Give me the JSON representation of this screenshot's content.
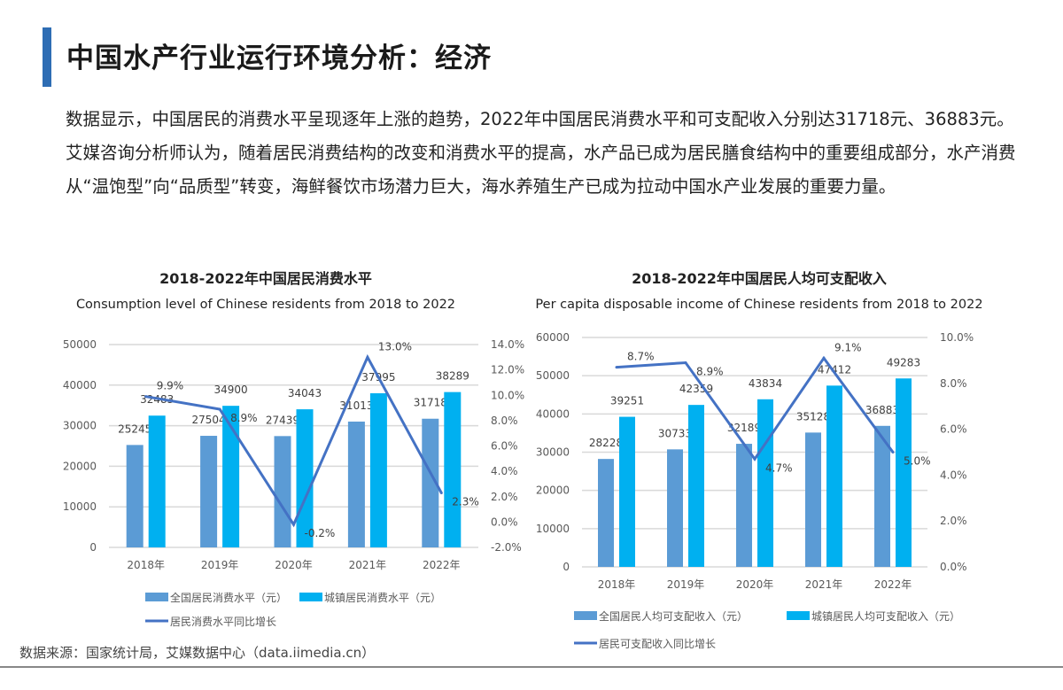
{
  "header": {
    "title": "中国水产行业运行环境分析：经济",
    "accent_color": "#2e6db4"
  },
  "body": {
    "paragraph": "数据显示，中国居民的消费水平呈现逐年上涨的趋势，2022年中国居民消费水平和可支配收入分别达31718元、36883元。艾媒咨询分析师认为，随着居民消费结构的改变和消费水平的提高，水产品已成为居民膳食结构中的重要组成部分，水产消费从“温饱型”向“品质型”转变，海鲜餐饮市场潜力巨大，海水养殖生产已成为拉动中国水产业发展的重要力量。"
  },
  "chart_data": [
    {
      "type": "bar",
      "title": "2018-2022年中国居民消费水平",
      "subtitle": "Consumption level of Chinese residents from 2018 to 2022",
      "categories": [
        "2018年",
        "2019年",
        "2020年",
        "2021年",
        "2022年"
      ],
      "series": [
        {
          "name": "全国居民消费水平（元）",
          "type": "bar",
          "axis": "left",
          "color": "#5b9bd5",
          "values": [
            25245,
            27504,
            27439,
            31013,
            31718
          ]
        },
        {
          "name": "城镇居民消费水平（元）",
          "type": "bar",
          "axis": "left",
          "color": "#00b0f0",
          "values": [
            32483,
            34900,
            34043,
            37995,
            38289
          ]
        },
        {
          "name": "居民消费水平同比增长",
          "type": "line",
          "axis": "right",
          "color": "#4472c4",
          "values": [
            9.9,
            8.9,
            -0.2,
            13.0,
            2.3
          ],
          "labels": [
            "9.9%",
            "8.9%",
            "-0.2%",
            "13.0%",
            "2.3%"
          ]
        }
      ],
      "yticks": [
        "0",
        "10000",
        "20000",
        "30000",
        "40000",
        "50000"
      ],
      "ylim": [
        0,
        50000
      ],
      "y2ticks": [
        "-2.0%",
        "0.0%",
        "2.0%",
        "4.0%",
        "6.0%",
        "8.0%",
        "10.0%",
        "12.0%",
        "14.0%"
      ],
      "y2lim": [
        -2,
        14
      ],
      "grid": true,
      "legend": "bottom"
    },
    {
      "type": "bar",
      "title": "2018-2022年中国居民人均可支配收入",
      "subtitle": "Per capita disposable income of Chinese residents from 2018 to 2022",
      "categories": [
        "2018年",
        "2019年",
        "2020年",
        "2021年",
        "2022年"
      ],
      "series": [
        {
          "name": "全国居民人均可支配收入（元）",
          "type": "bar",
          "axis": "left",
          "color": "#5b9bd5",
          "values": [
            28228,
            30733,
            32189,
            35128,
            36883
          ]
        },
        {
          "name": "城镇居民人均可支配收入（元）",
          "type": "bar",
          "axis": "left",
          "color": "#00b0f0",
          "values": [
            39251,
            42359,
            43834,
            47412,
            49283
          ]
        },
        {
          "name": "居民可支配收入同比增长",
          "type": "line",
          "axis": "right",
          "color": "#4472c4",
          "values": [
            8.7,
            8.9,
            4.7,
            9.1,
            5.0
          ],
          "labels": [
            "8.7%",
            "8.9%",
            "4.7%",
            "9.1%",
            "5.0%"
          ]
        }
      ],
      "yticks": [
        "0",
        "10000",
        "20000",
        "30000",
        "40000",
        "50000",
        "60000"
      ],
      "ylim": [
        0,
        60000
      ],
      "y2ticks": [
        "0.0%",
        "2.0%",
        "4.0%",
        "6.0%",
        "8.0%",
        "10.0%"
      ],
      "y2lim": [
        0,
        10
      ],
      "grid": true,
      "legend": "bottom"
    }
  ],
  "footer": {
    "source": "数据来源：国家统计局，艾媒数据中心（data.iimedia.cn）"
  }
}
